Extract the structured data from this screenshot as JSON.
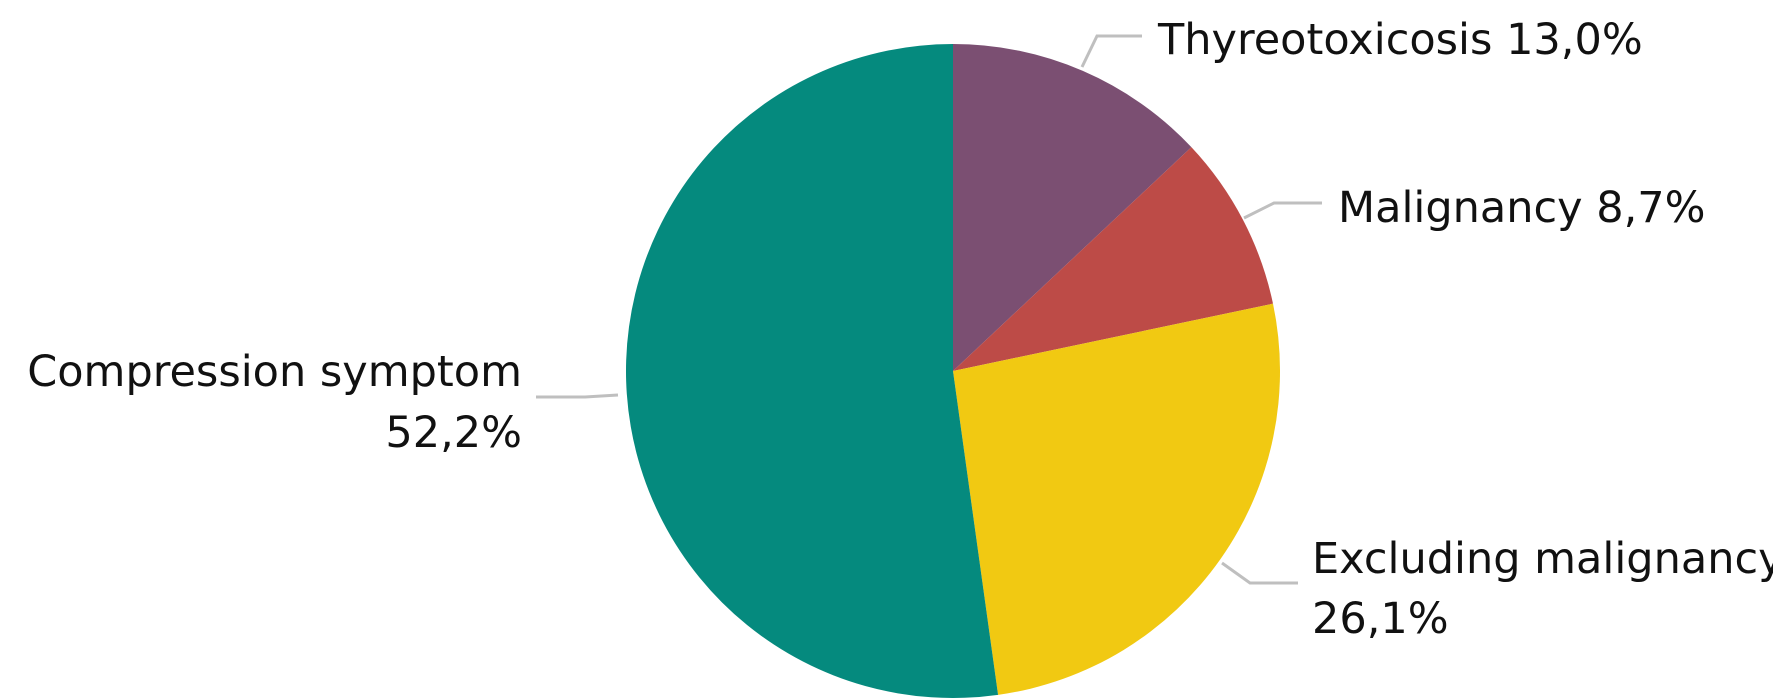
{
  "chart_data": {
    "type": "pie",
    "start_angle_deg": 0,
    "direction": "clockwise",
    "legend": "none",
    "slices": [
      {
        "label": "Thyreotoxicosis",
        "value": 13.0,
        "value_label": "13,0%",
        "color": "#7b4f72"
      },
      {
        "label": "Malignancy",
        "value": 8.7,
        "value_label": "8,7%",
        "color": "#bd4b47"
      },
      {
        "label": "Excluding malignancy",
        "value": 26.1,
        "value_label": "26,1%",
        "color": "#f1c912"
      },
      {
        "label": "Compression symptom",
        "value": 52.2,
        "value_label": "52,2%",
        "color": "#058a7e"
      }
    ]
  }
}
